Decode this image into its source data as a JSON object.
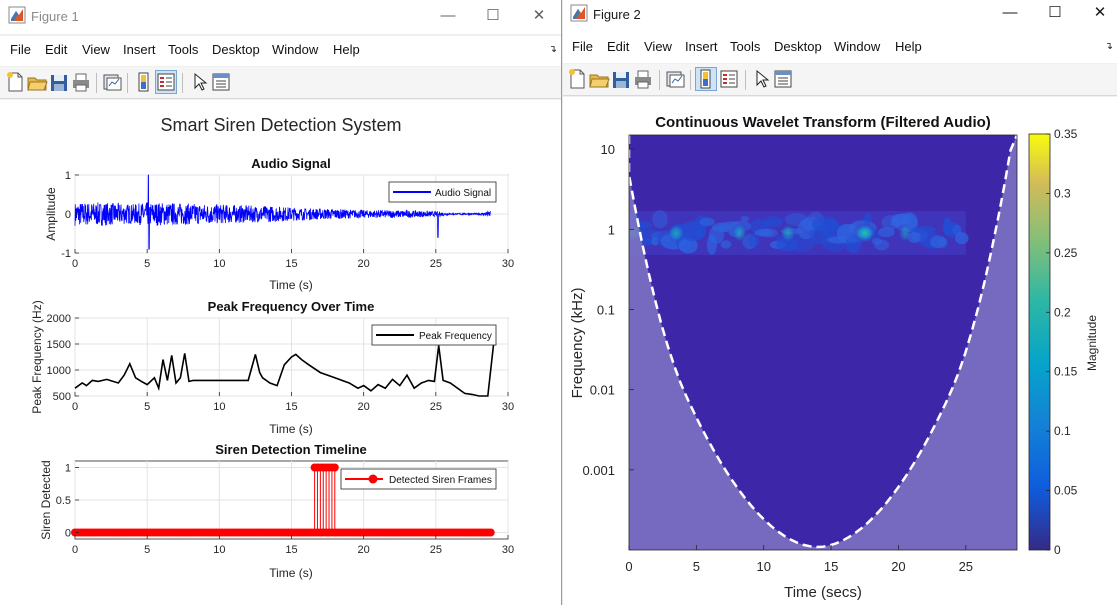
{
  "figure1": {
    "window_title": "Figure 1",
    "main_title": "Smart Siren Detection System",
    "menu": [
      "File",
      "Edit",
      "View",
      "Insert",
      "Tools",
      "Desktop",
      "Window",
      "Help"
    ],
    "plot1": {
      "title": "Audio Signal",
      "xlabel": "Time (s)",
      "ylabel": "Amplitude",
      "xticks": [
        "0",
        "5",
        "10",
        "15",
        "20",
        "25",
        "30"
      ],
      "yticks": [
        "1",
        "0",
        "-1"
      ],
      "legend": "Audio Signal"
    },
    "plot2": {
      "title": "Peak Frequency Over Time",
      "xlabel": "Time (s)",
      "ylabel": "Peak Frequency (Hz)",
      "xticks": [
        "0",
        "5",
        "10",
        "15",
        "20",
        "25",
        "30"
      ],
      "yticks": [
        "2000",
        "1500",
        "1000",
        "500"
      ],
      "legend": "Peak Frequency"
    },
    "plot3": {
      "title": "Siren Detection Timeline",
      "xlabel": "Time (s)",
      "ylabel": "Siren Detected",
      "xticks": [
        "0",
        "5",
        "10",
        "15",
        "20",
        "25",
        "30"
      ],
      "yticks": [
        "1",
        "0.5",
        "0"
      ],
      "legend": "Detected Siren Frames"
    }
  },
  "figure2": {
    "window_title": "Figure 2",
    "menu": [
      "File",
      "Edit",
      "View",
      "Insert",
      "Tools",
      "Desktop",
      "Window",
      "Help"
    ],
    "plot_title": "Continuous Wavelet Transform (Filtered Audio)",
    "xlabel": "Time (secs)",
    "ylabel": "Frequency (kHz)",
    "xticks": [
      "0",
      "5",
      "10",
      "15",
      "20",
      "25"
    ],
    "yticks": [
      "10",
      "1",
      "0.1",
      "0.01",
      "0.001"
    ],
    "colorbar_label": "Magnitude",
    "colorbar_ticks": [
      "0.35",
      "0.3",
      "0.25",
      "0.2",
      "0.15",
      "0.1",
      "0.05",
      "0"
    ]
  },
  "colors": {
    "signal": "#0000ff",
    "peak": "#000000",
    "siren": "#ff0000",
    "scalogram_bg": "#3e26a8",
    "coi_fill": "#7f77c4"
  },
  "chart_data": [
    {
      "type": "line",
      "title": "Audio Signal",
      "xlabel": "Time (s)",
      "ylabel": "Amplitude",
      "xlim": [
        0,
        30
      ],
      "ylim": [
        -1,
        1
      ],
      "grid": true,
      "legend_placement": "top-right",
      "series": [
        {
          "name": "Audio Signal",
          "x": [
            0,
            2,
            4,
            5,
            6,
            8,
            10,
            12,
            14,
            16,
            18,
            20,
            22,
            24,
            25.3,
            26,
            28,
            28.8
          ],
          "envelope": [
            0.3,
            0.3,
            0.25,
            0.3,
            0.3,
            0.27,
            0.25,
            0.22,
            0.2,
            0.15,
            0.13,
            0.1,
            0.1,
            0.08,
            0.06,
            0.02,
            0.02,
            0.08
          ]
        }
      ]
    },
    {
      "type": "line",
      "title": "Peak Frequency Over Time",
      "xlabel": "Time (s)",
      "ylabel": "Peak Frequency (Hz)",
      "xlim": [
        0,
        30
      ],
      "ylim": [
        500,
        2000
      ],
      "grid": true,
      "legend_placement": "top-right",
      "series": [
        {
          "name": "Peak Frequency",
          "x": [
            0,
            0.5,
            0.8,
            1.2,
            1.6,
            2.2,
            3.0,
            3.4,
            3.8,
            4.2,
            4.6,
            5.0,
            5.5,
            5.8,
            6.1,
            6.4,
            6.7,
            7.0,
            7.3,
            7.6,
            7.9,
            8.2,
            8.5,
            9.0,
            9.5,
            10,
            11,
            12,
            12.5,
            12.8,
            13.0,
            13.5,
            14,
            14.5,
            15,
            15.3,
            15.7,
            16.2,
            17,
            18,
            19,
            19.6,
            20,
            20.5,
            21,
            21.5,
            22,
            22.5,
            23,
            23.5,
            24,
            24.5,
            24.9,
            25.2,
            25.5,
            26,
            27,
            27.5,
            28,
            28.6,
            29.0
          ],
          "values": [
            650,
            750,
            700,
            800,
            780,
            820,
            750,
            900,
            1120,
            850,
            780,
            720,
            850,
            650,
            1200,
            800,
            1280,
            750,
            850,
            1320,
            780,
            800,
            800,
            800,
            800,
            800,
            800,
            800,
            1300,
            950,
            850,
            750,
            700,
            1100,
            1250,
            1300,
            1200,
            1100,
            950,
            850,
            750,
            650,
            700,
            600,
            720,
            650,
            820,
            700,
            900,
            650,
            750,
            800,
            780,
            1470,
            800,
            750,
            550,
            530,
            500,
            500,
            1500
          ]
        }
      ]
    },
    {
      "type": "scatter",
      "title": "Siren Detection Timeline",
      "xlabel": "Time (s)",
      "ylabel": "Siren Detected",
      "xlim": [
        0,
        30
      ],
      "ylim": [
        -0.1,
        1.1
      ],
      "grid": true,
      "legend_placement": "top-right",
      "series": [
        {
          "name": "Detected Siren Frames",
          "baseline_x_range": [
            0,
            28.8
          ],
          "baseline_value": 0,
          "detected_x": [
            16.6,
            16.8,
            17.0,
            17.2,
            17.4,
            17.6,
            17.8,
            18.0
          ],
          "detected_value": 1
        }
      ]
    },
    {
      "type": "heatmap",
      "title": "Continuous Wavelet Transform (Filtered Audio)",
      "xlabel": "Time (secs)",
      "ylabel": "Frequency (kHz)",
      "xlim": [
        0,
        28.8
      ],
      "ylim": [
        0.0001,
        15
      ],
      "yscale": "log",
      "colorbar": {
        "label": "Magnitude",
        "range": [
          0,
          0.35
        ]
      },
      "energy_band": {
        "frequency_khz": 0.9,
        "time_range": [
          0,
          25
        ],
        "peak_time": 17.5
      },
      "cone_of_influence": {
        "min_time": 14,
        "shaded_below": true
      }
    }
  ]
}
